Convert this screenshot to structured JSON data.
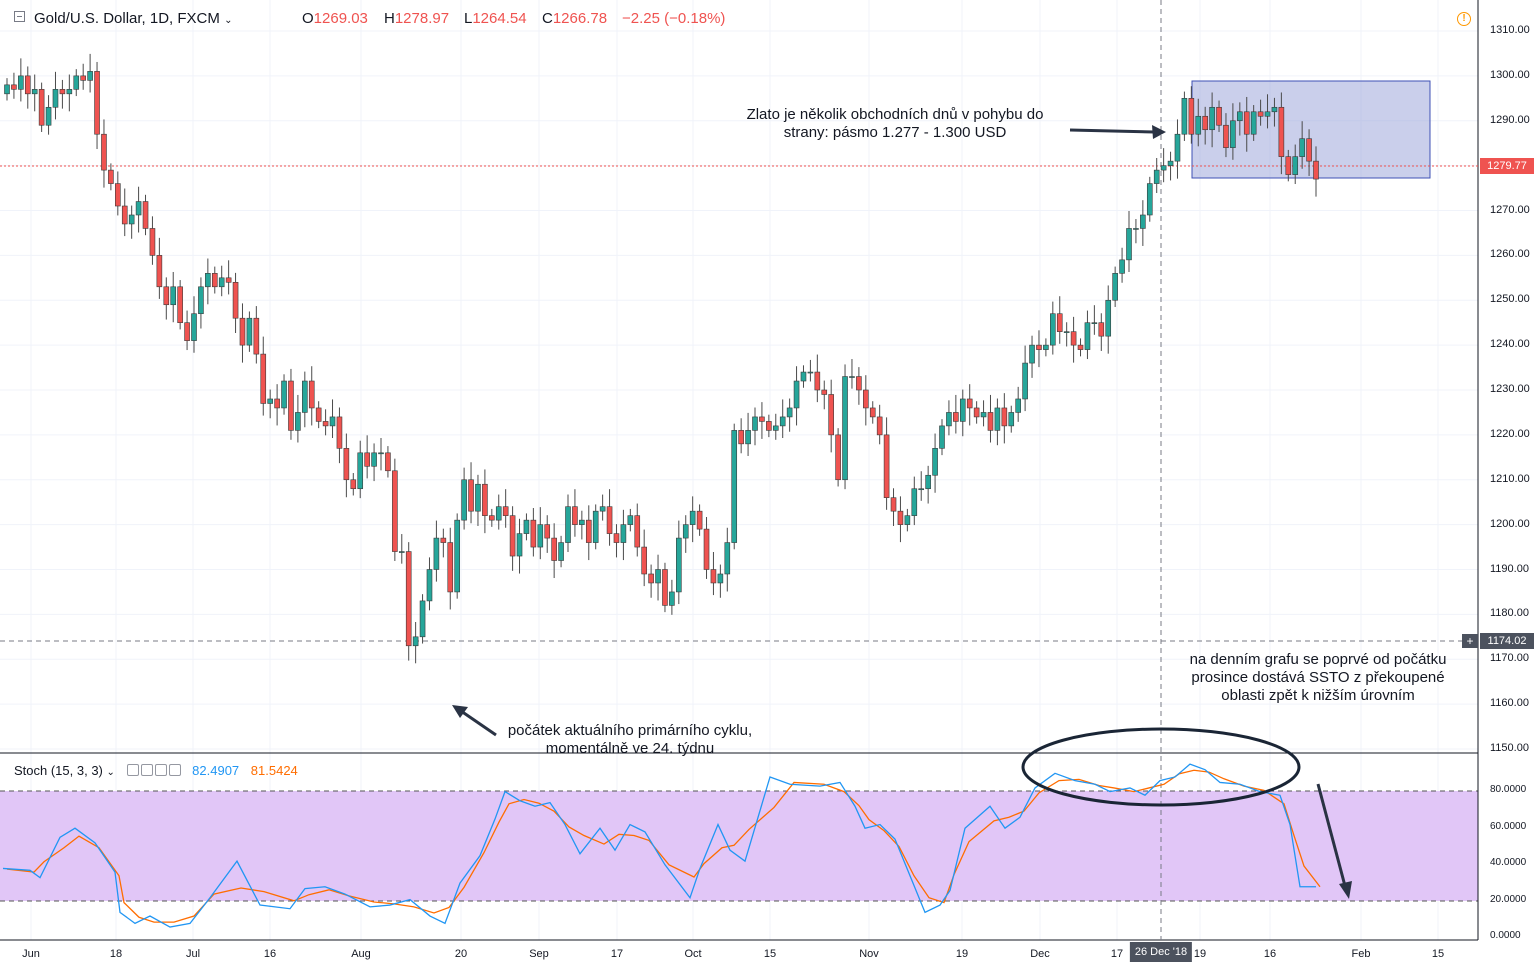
{
  "header": {
    "symbol": "Gold/U.S. Dollar, 1D, FXCM",
    "ohlc": [
      {
        "key": "O",
        "value": "1269.03"
      },
      {
        "key": "H",
        "value": "1278.97"
      },
      {
        "key": "L",
        "value": "1264.54"
      },
      {
        "key": "C",
        "value": "1266.78"
      }
    ],
    "change": "−2.25 (−0.18%)",
    "warning_icon": "alert-circle-icon"
  },
  "price_axis": {
    "labels": [
      "1310.00",
      "1300.00",
      "1290.00",
      "1280.00",
      "1270.00",
      "1260.00",
      "1250.00",
      "1240.00",
      "1230.00",
      "1220.00",
      "1210.00",
      "1200.00",
      "1190.00",
      "1180.00",
      "1170.00",
      "1160.00",
      "1150.00"
    ],
    "current_price": "1279.77",
    "crosshair_price": "1174.02"
  },
  "stoch_axis": {
    "labels": [
      "80.0000",
      "60.0000",
      "40.0000",
      "20.0000",
      "0.0000"
    ]
  },
  "time_axis": {
    "labels": [
      "Jun",
      "18",
      "Jul",
      "16",
      "Aug",
      "20",
      "Sep",
      "17",
      "Oct",
      "15",
      "Nov",
      "19",
      "Dec",
      "17",
      "19",
      "16",
      "Feb",
      "15"
    ],
    "crosshair_date": "26 Dec '18"
  },
  "stoch": {
    "name": "Stoch (15, 3, 3)",
    "k_value": "82.4907",
    "d_value": "81.5424"
  },
  "annotations": {
    "range_note_line1": "Zlato je několik obchodních dnů v pohybu do",
    "range_note_line2": "strany: pásmo 1.277 - 1.300 USD",
    "cycle_note_line1": "počátek aktuálního primárního cyklu,",
    "cycle_note_line2": "momentálně ve 24. týdnu",
    "stoch_note_line1": "na denním grafu se poprvé od počátku",
    "stoch_note_line2": "prosince dostává SSTO z překoupené",
    "stoch_note_line3": "oblasti zpět k nižším úrovním"
  },
  "colors": {
    "up": "#26a69a",
    "down": "#ef5350",
    "stoch_k": "#2196f3",
    "stoch_d": "#ff6d00",
    "stoch_band": "#e1c6f7",
    "range_box": "#9fa8da"
  },
  "chart_data": {
    "type": "candlestick",
    "title": "Gold/U.S. Dollar, 1D, FXCM",
    "ylim": [
      1147,
      1314
    ],
    "closes": [
      1298,
      1297,
      1300,
      1296,
      1297,
      1289,
      1293,
      1297,
      1296,
      1297,
      1300,
      1299,
      1301,
      1287,
      1279,
      1276,
      1271,
      1267,
      1269,
      1272,
      1266,
      1260,
      1253,
      1249,
      1253,
      1245,
      1241,
      1247,
      1253,
      1256,
      1253,
      1255,
      1254,
      1246,
      1240,
      1246,
      1238,
      1227,
      1228,
      1226,
      1232,
      1221,
      1225,
      1232,
      1226,
      1223,
      1222,
      1224,
      1217,
      1210,
      1208,
      1216,
      1213,
      1216,
      1216,
      1212,
      1194,
      1194,
      1173,
      1175,
      1183,
      1190,
      1197,
      1196,
      1185,
      1201,
      1210,
      1203,
      1209,
      1202,
      1201,
      1204,
      1202,
      1193,
      1198,
      1201,
      1195,
      1200,
      1197,
      1192,
      1196,
      1204,
      1200,
      1201,
      1196,
      1203,
      1204,
      1198,
      1196,
      1200,
      1202,
      1195,
      1189,
      1187,
      1190,
      1182,
      1185,
      1197,
      1200,
      1203,
      1199,
      1190,
      1187,
      1189,
      1196,
      1221,
      1218,
      1221,
      1224,
      1223,
      1221,
      1222,
      1224,
      1226,
      1232,
      1234,
      1234,
      1230,
      1229,
      1220,
      1210,
      1233,
      1233,
      1230,
      1226,
      1224,
      1220,
      1206,
      1203,
      1200,
      1202,
      1208,
      1208,
      1211,
      1217,
      1222,
      1225,
      1223,
      1228,
      1226,
      1224,
      1225,
      1221,
      1226,
      1222,
      1225,
      1228,
      1236,
      1240,
      1239,
      1240,
      1247,
      1243,
      1243,
      1240,
      1239,
      1245,
      1245,
      1242,
      1250,
      1256,
      1259,
      1266,
      1266,
      1269,
      1276,
      1279,
      1280,
      1281,
      1287,
      1295,
      1287,
      1291,
      1288,
      1293,
      1289,
      1284,
      1290,
      1292,
      1287,
      1292,
      1291,
      1292,
      1293,
      1282,
      1278,
      1282,
      1286,
      1281,
      1277
    ]
  }
}
